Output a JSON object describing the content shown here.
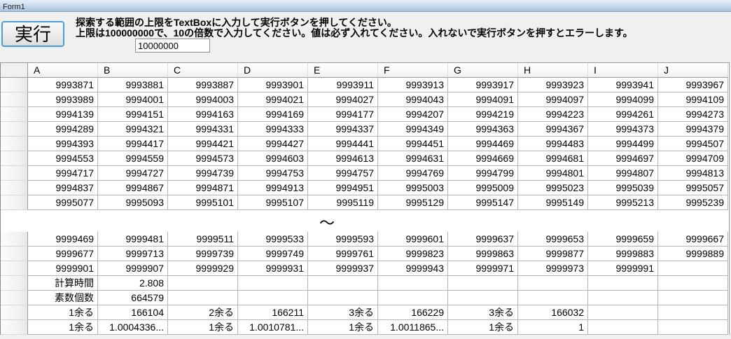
{
  "window": {
    "title": "Form1"
  },
  "toolbar": {
    "run_button_label": "実行",
    "instructions_line1": "探索する範囲の上限をTextBoxに入力して実行ボタンを押してください。",
    "instructions_line2": "上限は100000000で、10の倍数で入力してください。値は必ず入れてください。入れないで実行ボタンを押すとエラーします。",
    "upper_limit_value": "10000000"
  },
  "grid": {
    "columns": [
      "A",
      "B",
      "C",
      "D",
      "E",
      "F",
      "G",
      "H",
      "I",
      "J"
    ],
    "top_rows": [
      [
        "9993871",
        "9993881",
        "9993887",
        "9993901",
        "9993911",
        "9993913",
        "9993917",
        "9993923",
        "9993941",
        "9993967"
      ],
      [
        "9993989",
        "9994001",
        "9994003",
        "9994021",
        "9994027",
        "9994043",
        "9994091",
        "9994097",
        "9994099",
        "9994109"
      ],
      [
        "9994139",
        "9994151",
        "9994163",
        "9994169",
        "9994177",
        "9994207",
        "9994219",
        "9994223",
        "9994261",
        "9994273"
      ],
      [
        "9994289",
        "9994321",
        "9994331",
        "9994333",
        "9994337",
        "9994349",
        "9994363",
        "9994367",
        "9994373",
        "9994379"
      ],
      [
        "9994393",
        "9994417",
        "9994421",
        "9994427",
        "9994441",
        "9994451",
        "9994469",
        "9994483",
        "9994499",
        "9994507"
      ],
      [
        "9994553",
        "9994559",
        "9994573",
        "9994603",
        "9994613",
        "9994631",
        "9994669",
        "9994681",
        "9994697",
        "9994709"
      ],
      [
        "9994717",
        "9994727",
        "9994739",
        "9994753",
        "9994757",
        "9994769",
        "9994799",
        "9994801",
        "9994807",
        "9994813"
      ],
      [
        "9994837",
        "9994867",
        "9994871",
        "9994913",
        "9994951",
        "9995003",
        "9995009",
        "9995023",
        "9995039",
        "9995057"
      ],
      [
        "9995077",
        "9995093",
        "9995101",
        "9995107",
        "9995119",
        "9995129",
        "9995147",
        "9995149",
        "9995213",
        "9995239"
      ]
    ],
    "separator": "〜",
    "bottom_rows": [
      [
        "9999469",
        "9999481",
        "9999511",
        "9999533",
        "9999593",
        "9999601",
        "9999637",
        "9999653",
        "9999659",
        "9999667"
      ],
      [
        "9999677",
        "9999713",
        "9999739",
        "9999749",
        "9999761",
        "9999823",
        "9999863",
        "9999877",
        "9999883",
        "9999889"
      ],
      [
        "9999901",
        "9999907",
        "9999929",
        "9999931",
        "9999937",
        "9999943",
        "9999971",
        "9999973",
        "9999991",
        ""
      ],
      [
        "計算時間",
        "2.808",
        "",
        "",
        "",
        "",
        "",
        "",
        "",
        ""
      ],
      [
        "素数個数",
        "664579",
        "",
        "",
        "",
        "",
        "",
        "",
        "",
        ""
      ],
      [
        "1余る",
        "166104",
        "2余る",
        "166211",
        "3余る",
        "166229",
        "3余る",
        "166032",
        "",
        ""
      ],
      [
        "1余る",
        "1.0004336...",
        "1余る",
        "1.0010781...",
        "1余る",
        "1.0011865...",
        "1余る",
        "1",
        "",
        ""
      ]
    ]
  }
}
